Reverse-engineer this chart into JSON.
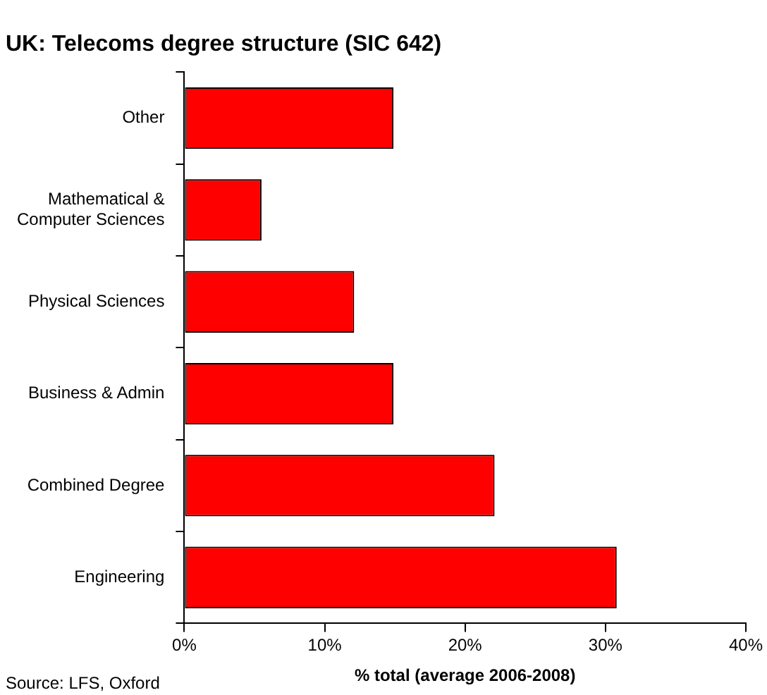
{
  "chart_data": {
    "type": "bar",
    "orientation": "horizontal",
    "title": "UK: Telecoms degree structure (SIC 642)",
    "xlabel": "% total (average 2006-2008)",
    "categories": [
      "Other",
      "Mathematical & Computer Sciences",
      "Physical Sciences",
      "Business & Admin",
      "Combined Degree",
      "Engineering"
    ],
    "values": [
      14.9,
      5.5,
      12.1,
      14.9,
      22.1,
      30.8
    ],
    "color": "#ff0000",
    "xlim": [
      0,
      40
    ],
    "xticks": [
      {
        "value": 0,
        "label": "0%"
      },
      {
        "value": 10,
        "label": "10%"
      },
      {
        "value": 20,
        "label": "20%"
      },
      {
        "value": 30,
        "label": "30%"
      },
      {
        "value": 40,
        "label": "40%"
      }
    ],
    "grid": false,
    "legend": false,
    "annotations": [
      "Source: LFS, Oxford"
    ]
  }
}
